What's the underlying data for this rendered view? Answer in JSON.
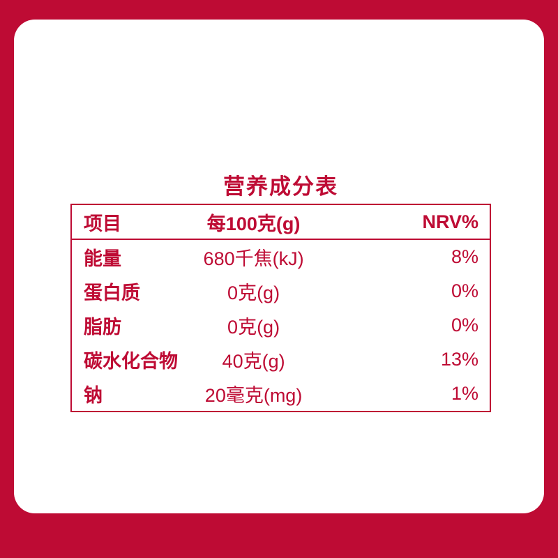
{
  "colors": {
    "frame": "#BE0B34",
    "panel": "#FFFFFF",
    "text": "#BE0B34"
  },
  "title": "营养成分表",
  "table": {
    "headers": {
      "item": "项目",
      "per100g": "每100克(g)",
      "nrv": "NRV%"
    },
    "rows": [
      {
        "label": "能量",
        "value": "680千焦(kJ)",
        "nrv": "8%"
      },
      {
        "label": "蛋白质",
        "value": "0克(g)",
        "nrv": "0%"
      },
      {
        "label": "脂肪",
        "value": "0克(g)",
        "nrv": "0%"
      },
      {
        "label": "碳水化合物",
        "value": "40克(g)",
        "nrv": "13%"
      },
      {
        "label": "钠",
        "value": "20毫克(mg)",
        "nrv": "1%"
      }
    ]
  }
}
